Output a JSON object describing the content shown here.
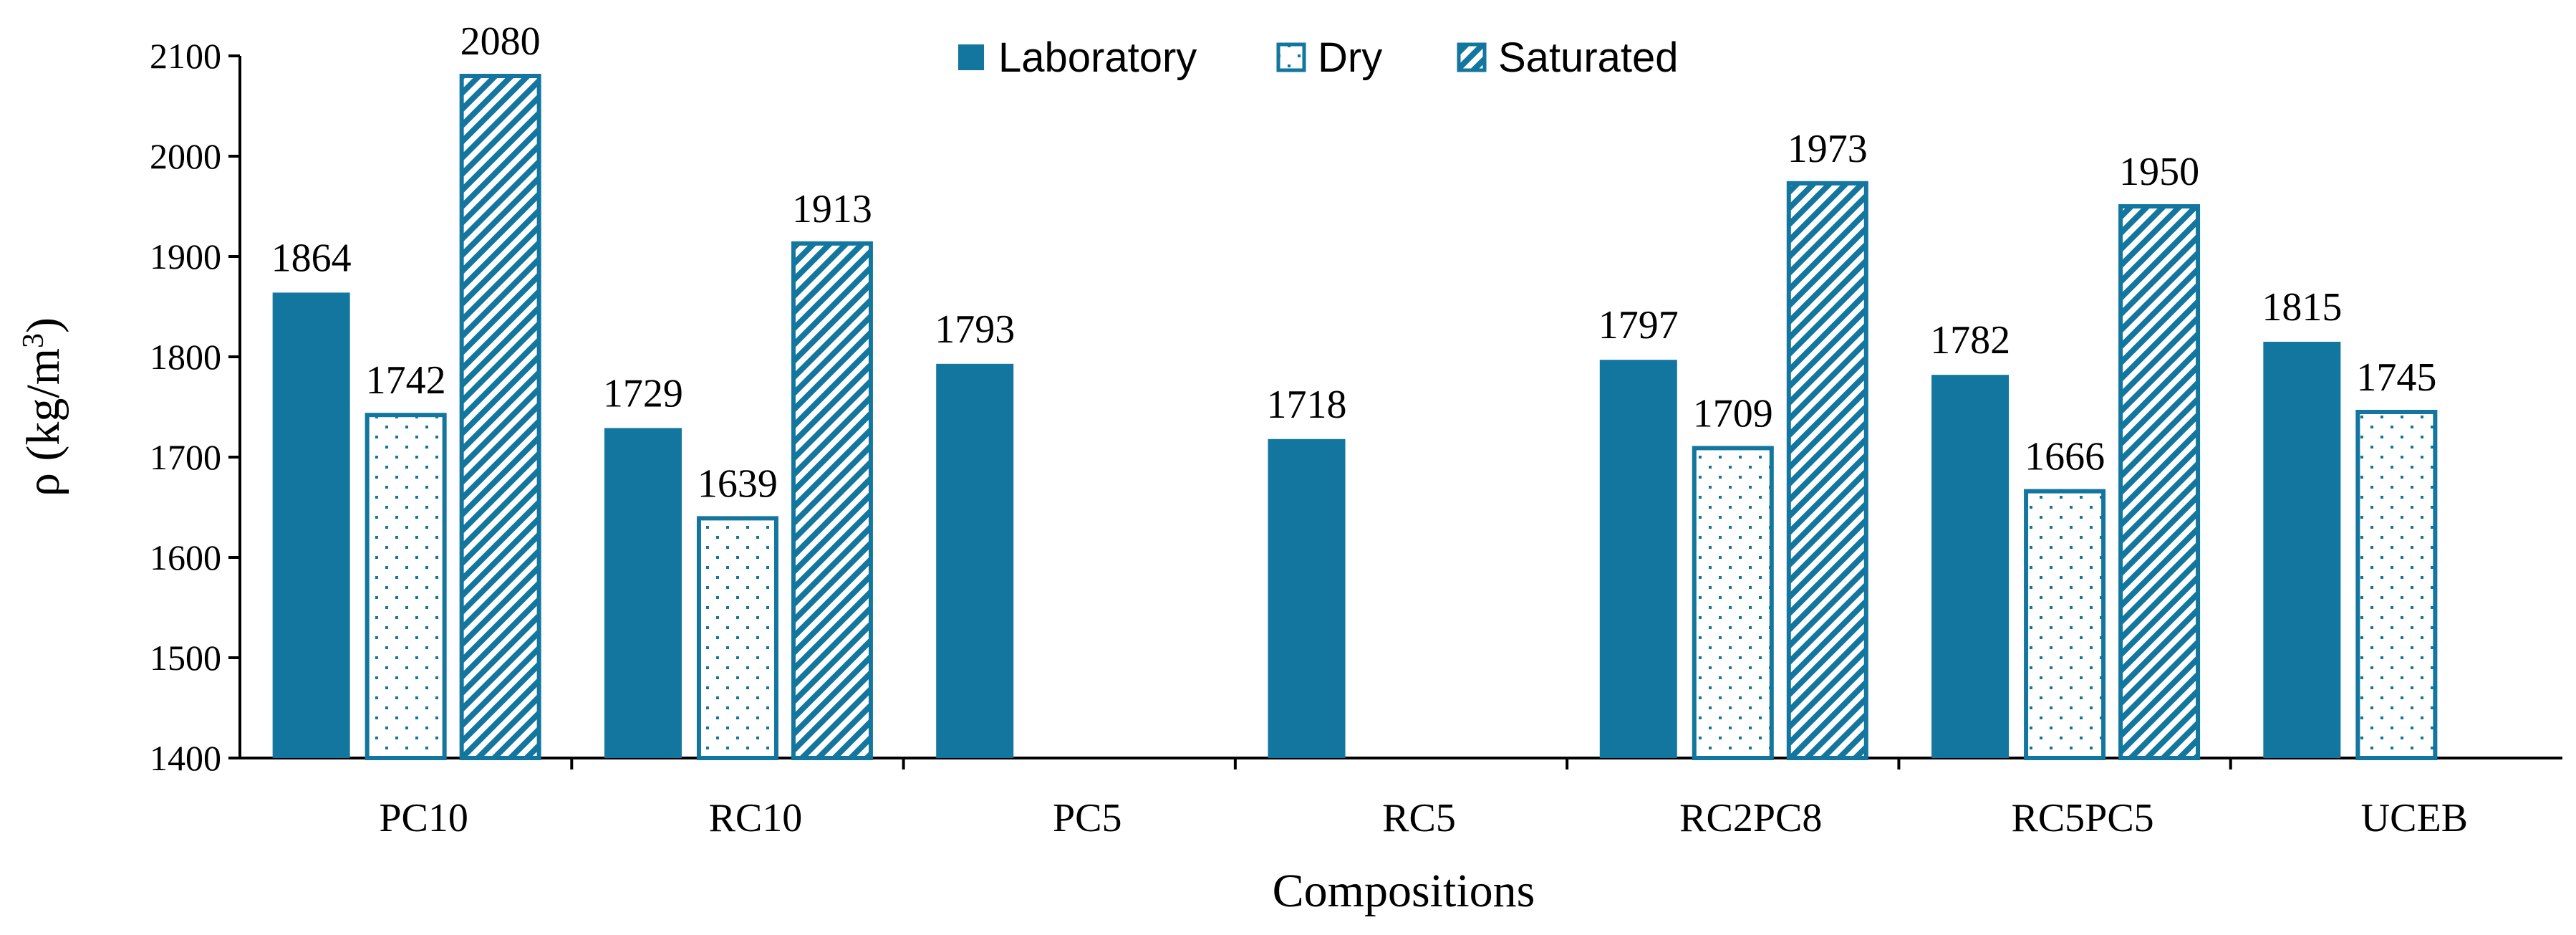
{
  "chart_data": {
    "type": "bar",
    "title": "",
    "xlabel": "Compositions",
    "ylabel_main": "ρ (kg/m",
    "ylabel_sup": "3",
    "ylabel_close": ")",
    "ylim": [
      1400,
      2100
    ],
    "yticks": [
      1400,
      1500,
      1600,
      1700,
      1800,
      1900,
      2000,
      2100
    ],
    "categories": [
      "PC10",
      "RC10",
      "PC5",
      "RC5",
      "RC2PC8",
      "RC5PC5",
      "UCEB"
    ],
    "legend_position": "top-center",
    "series": [
      {
        "name": "Laboratory",
        "pattern": "solid",
        "values": [
          1864,
          1729,
          1793,
          1718,
          1797,
          1782,
          1815
        ]
      },
      {
        "name": "Dry",
        "pattern": "dots",
        "values": [
          1742,
          1639,
          null,
          null,
          1709,
          1666,
          1745
        ]
      },
      {
        "name": "Saturated",
        "pattern": "diagonal",
        "values": [
          2080,
          1913,
          null,
          null,
          1973,
          1950,
          null
        ]
      }
    ],
    "colors": {
      "bar": "#12769E",
      "axis": "#000000",
      "background": "#ffffff"
    }
  }
}
